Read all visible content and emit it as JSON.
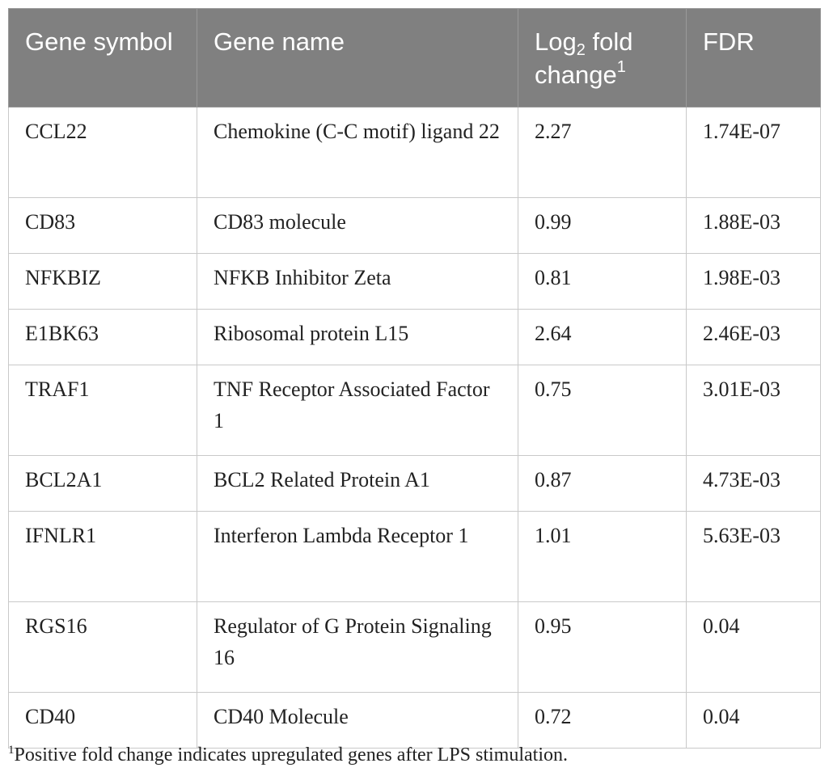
{
  "table": {
    "headers": {
      "gene_symbol": "Gene symbol",
      "gene_name": "Gene name",
      "log2_prefix": "Log",
      "log2_sub": "2",
      "log2_suffix": " fold change",
      "log2_sup": "1",
      "fdr": "FDR"
    },
    "rows": [
      {
        "symbol": "CCL22",
        "name": "Chemokine (C-C motif) ligand 22",
        "log2fc": "2.27",
        "fdr": "1.74E-07"
      },
      {
        "symbol": "CD83",
        "name": "CD83 molecule",
        "log2fc": "0.99",
        "fdr": "1.88E-03"
      },
      {
        "symbol": "NFKBIZ",
        "name": "NFKB Inhibitor Zeta",
        "log2fc": "0.81",
        "fdr": "1.98E-03"
      },
      {
        "symbol": "E1BK63",
        "name": "Ribosomal protein L15",
        "log2fc": "2.64",
        "fdr": "2.46E-03"
      },
      {
        "symbol": "TRAF1",
        "name": "TNF Receptor Associated Factor 1",
        "log2fc": "0.75",
        "fdr": "3.01E-03"
      },
      {
        "symbol": "BCL2A1",
        "name": "BCL2 Related Protein A1",
        "log2fc": "0.87",
        "fdr": "4.73E-03"
      },
      {
        "symbol": "IFNLR1",
        "name": "Interferon Lambda Receptor 1",
        "log2fc": "1.01",
        "fdr": "5.63E-03"
      },
      {
        "symbol": "RGS16",
        "name": "Regulator of G Protein Signaling 16",
        "log2fc": "0.95",
        "fdr": "0.04"
      },
      {
        "symbol": "CD40",
        "name": "CD40 Molecule",
        "log2fc": "0.72",
        "fdr": "0.04"
      }
    ]
  },
  "footnote": {
    "marker": "1",
    "text": "Positive fold change indicates upregulated genes after LPS stimulation."
  },
  "colors": {
    "header_bg": "#808080",
    "header_text": "#ffffff",
    "body_text": "#222222",
    "grid": "#c9c9c9"
  }
}
